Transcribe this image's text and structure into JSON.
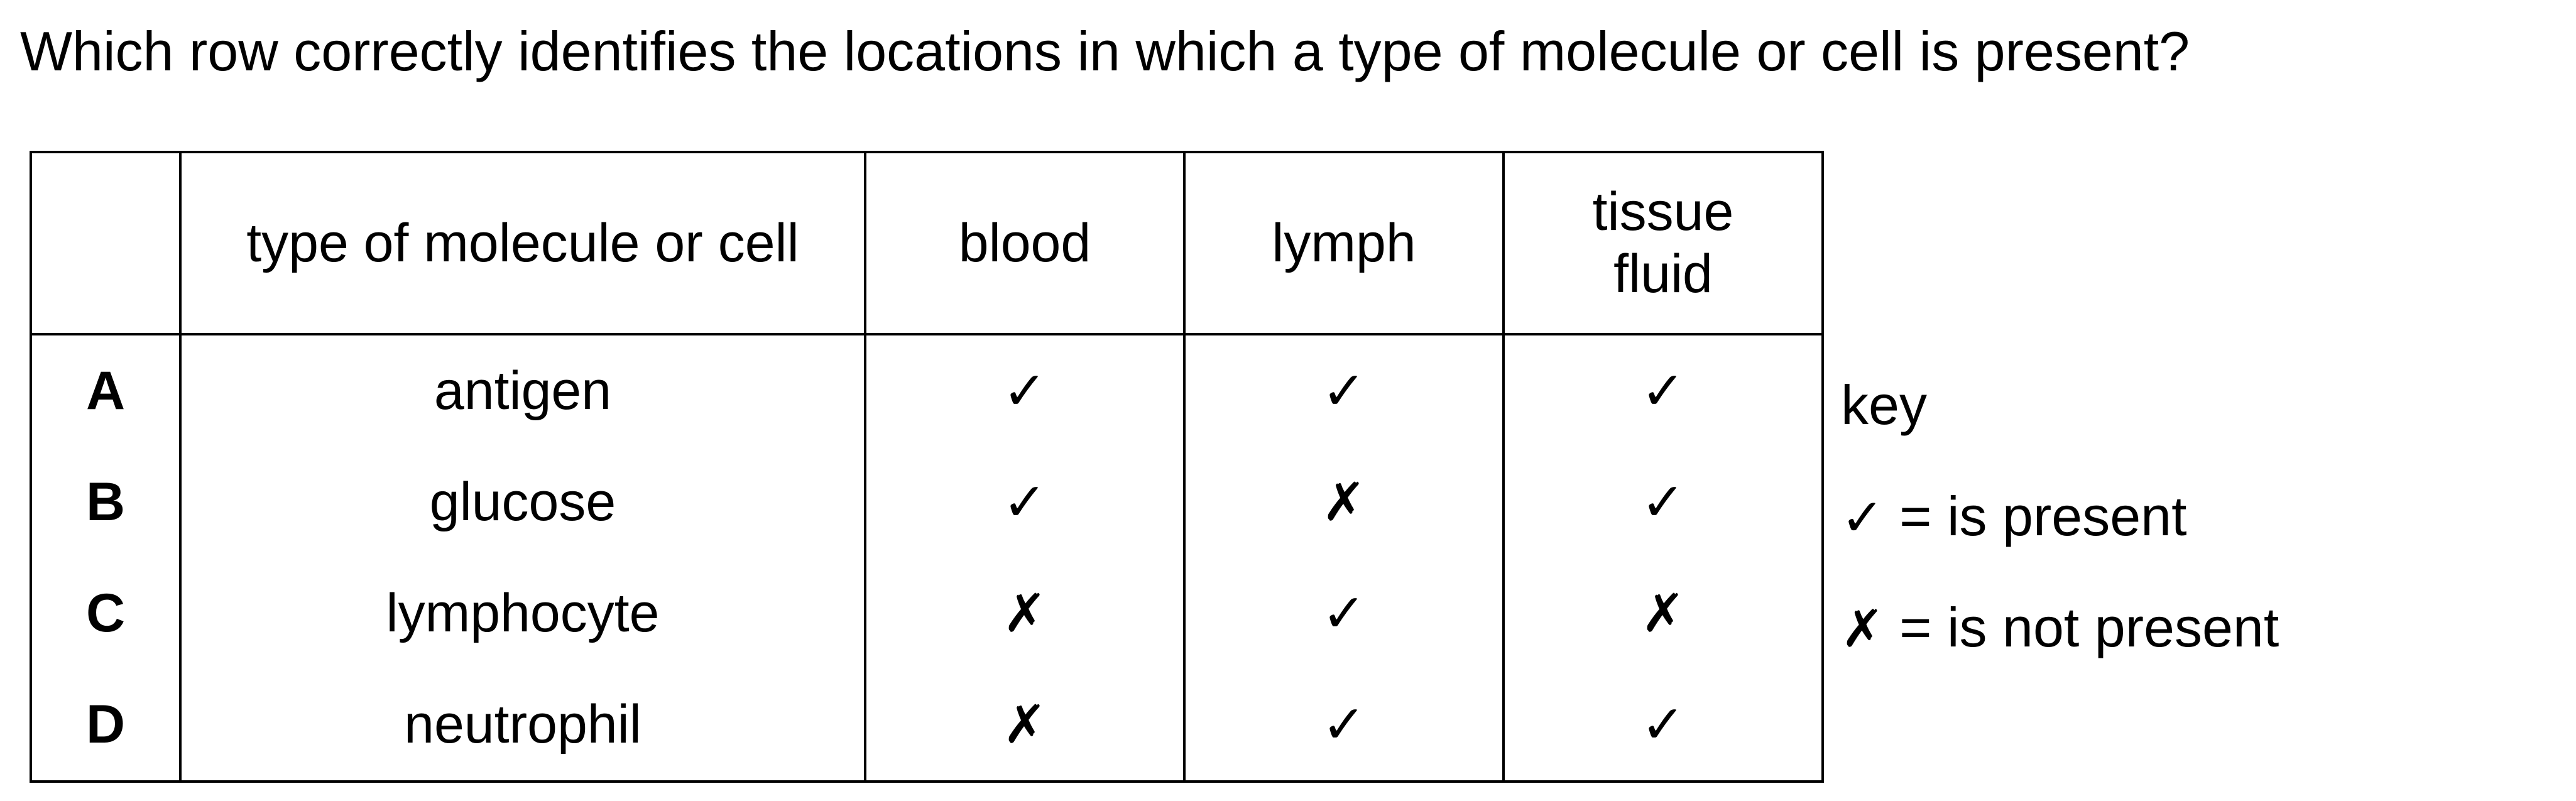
{
  "question": "Which row correctly identifies the locations in which a type of molecule or cell is present?",
  "table": {
    "headers": [
      "",
      "type of molecule or cell",
      "blood",
      "lymph",
      "tissue fluid"
    ],
    "header_lines": {
      "tissue_fluid_line1": "tissue",
      "tissue_fluid_line2": "fluid"
    },
    "rows": [
      {
        "letter": "A",
        "item": "antigen",
        "blood": "✓",
        "lymph": "✓",
        "tissue_fluid": "✓"
      },
      {
        "letter": "B",
        "item": "glucose",
        "blood": "✓",
        "lymph": "✗",
        "tissue_fluid": "✓"
      },
      {
        "letter": "C",
        "item": "lymphocyte",
        "blood": "✗",
        "lymph": "✓",
        "tissue_fluid": "✗"
      },
      {
        "letter": "D",
        "item": "neutrophil",
        "blood": "✗",
        "lymph": "✓",
        "tissue_fluid": "✓"
      }
    ]
  },
  "key": {
    "title": "key",
    "present_symbol": "✓",
    "present_text": " = is present",
    "absent_symbol": "✗",
    "absent_text": " = is not present"
  }
}
